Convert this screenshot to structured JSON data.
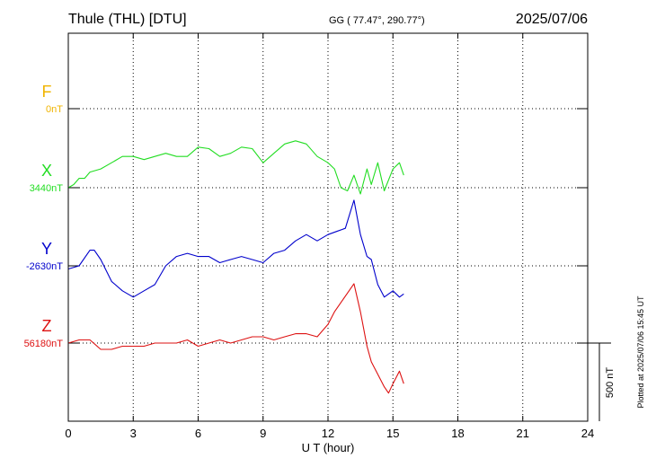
{
  "header": {
    "station": "Thule (THL)  [DTU]",
    "coords": "GG ( 77.47°, 290.77°)",
    "date": "2025/07/06"
  },
  "side_note": "Plotted at 2025/07/06 15:45 UT",
  "scale_bar_label": "500 nT",
  "colors": {
    "F": "#f0b400",
    "X": "#22dd22",
    "Y": "#0000cc",
    "Z": "#dd1111",
    "grid": "#000000"
  },
  "chart_data": {
    "type": "line",
    "xlabel": "U T (hour)",
    "xlim": [
      0,
      24
    ],
    "x_ticks": [
      "0",
      "3",
      "6",
      "9",
      "12",
      "15",
      "18",
      "21",
      "24"
    ],
    "grid": true,
    "scale_bar_nT": 500,
    "series": [
      {
        "name": "F",
        "baseline": "0nT",
        "x": [],
        "values": []
      },
      {
        "name": "X",
        "baseline": "3440nT",
        "x": [
          0,
          0.25,
          0.5,
          0.75,
          1,
          1.5,
          2,
          2.5,
          3,
          3.5,
          4,
          4.5,
          5,
          5.5,
          6,
          6.5,
          7,
          7.5,
          8,
          8.5,
          9,
          9.5,
          10,
          10.5,
          11,
          11.5,
          12,
          12.3,
          12.6,
          12.9,
          13.2,
          13.5,
          13.8,
          14,
          14.3,
          14.6,
          15,
          15.3,
          15.5
        ],
        "values": [
          0,
          20,
          60,
          60,
          100,
          120,
          160,
          200,
          200,
          180,
          200,
          220,
          200,
          200,
          260,
          250,
          200,
          220,
          260,
          250,
          160,
          220,
          280,
          300,
          280,
          200,
          160,
          120,
          0,
          -20,
          80,
          -40,
          120,
          20,
          160,
          -20,
          120,
          160,
          80
        ]
      },
      {
        "name": "Y",
        "baseline": "-2630nT",
        "x": [
          0,
          0.5,
          1,
          1.2,
          1.5,
          2,
          2.5,
          3,
          3.5,
          4,
          4.5,
          5,
          5.5,
          6,
          6.5,
          7,
          7.5,
          8,
          8.5,
          9,
          9.5,
          10,
          10.5,
          11,
          11.5,
          12,
          12.4,
          12.8,
          13.2,
          13.5,
          13.8,
          14,
          14.3,
          14.6,
          15,
          15.3,
          15.5
        ],
        "values": [
          -20,
          0,
          100,
          100,
          40,
          -100,
          -160,
          -200,
          -160,
          -120,
          0,
          60,
          80,
          60,
          60,
          20,
          40,
          60,
          40,
          20,
          80,
          100,
          160,
          200,
          160,
          200,
          220,
          240,
          420,
          200,
          60,
          40,
          -120,
          -200,
          -160,
          -200,
          -180
        ]
      },
      {
        "name": "Z",
        "baseline": "56180nT",
        "x": [
          0,
          0.5,
          1,
          1.5,
          2,
          2.5,
          3,
          3.5,
          4,
          4.5,
          5,
          5.5,
          6,
          6.5,
          7,
          7.5,
          8,
          8.5,
          9,
          9.5,
          10,
          10.5,
          11,
          11.5,
          12,
          12.3,
          12.6,
          12.9,
          13.2,
          13.5,
          13.8,
          14,
          14.3,
          14.6,
          14.8,
          15,
          15.3,
          15.5
        ],
        "values": [
          0,
          20,
          20,
          -40,
          -40,
          -20,
          -20,
          -20,
          0,
          0,
          0,
          20,
          -20,
          0,
          20,
          0,
          20,
          40,
          40,
          20,
          40,
          60,
          60,
          40,
          120,
          200,
          260,
          320,
          380,
          200,
          -20,
          -120,
          -200,
          -280,
          -320,
          -260,
          -180,
          -260
        ]
      }
    ]
  }
}
